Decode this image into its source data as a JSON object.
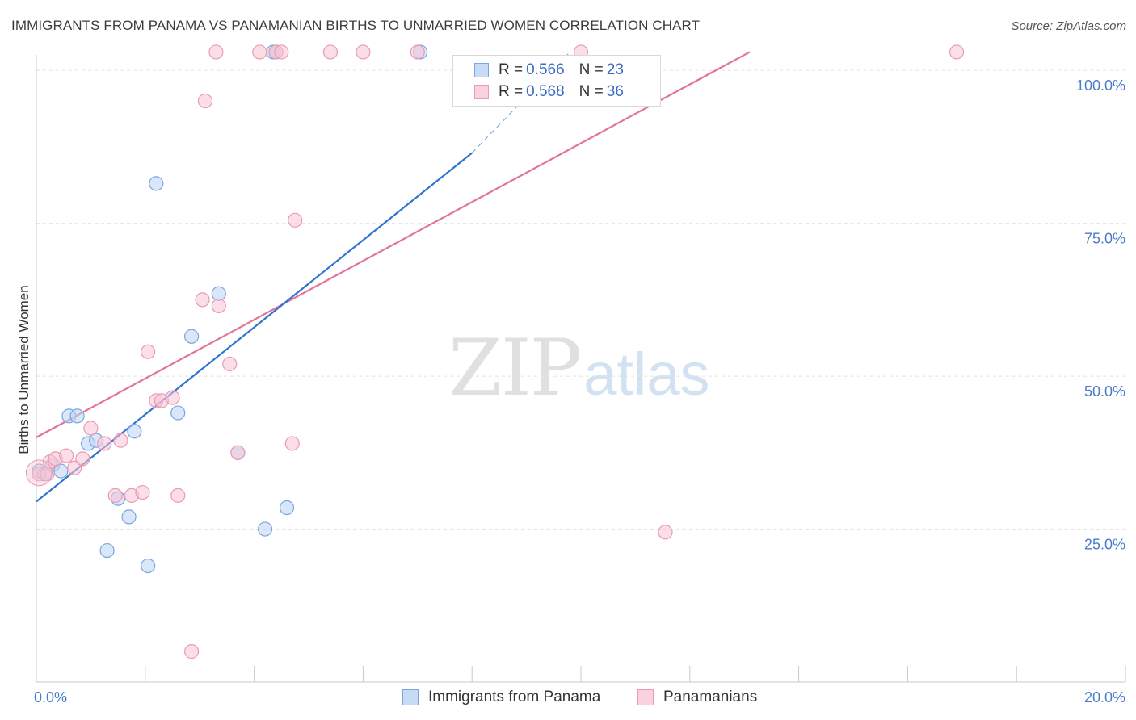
{
  "title": "IMMIGRANTS FROM PANAMA VS PANAMANIAN BIRTHS TO UNMARRIED WOMEN CORRELATION CHART",
  "source": "Source: ZipAtlas.com",
  "watermark": {
    "zip": "ZIP",
    "atlas": "atlas"
  },
  "legend": {
    "r_label": "R =",
    "n_label": "N =",
    "series": [
      {
        "r": "0.566",
        "n": "23"
      },
      {
        "r": "0.568",
        "n": "36"
      }
    ]
  },
  "colors": {
    "blue_fill": "#b9d3f3",
    "blue_stroke": "#7aa6e0",
    "blue_line": "#2f73d0",
    "pink_fill": "#f7c3d3",
    "pink_stroke": "#ec9ab4",
    "pink_line": "#e3739b",
    "grid": "#e2e2e2",
    "tick_text": "#4a7cc9"
  },
  "chart_data": {
    "type": "scatter",
    "title": "IMMIGRANTS FROM PANAMA VS PANAMANIAN BIRTHS TO UNMARRIED WOMEN CORRELATION CHART",
    "xlabel": "",
    "ylabel": "Births to Unmarried Women",
    "xlim": [
      0,
      20
    ],
    "ylim": [
      0,
      102
    ],
    "x_tick_labels": [
      {
        "value": 0,
        "label": "0.0%"
      },
      {
        "value": 20,
        "label": "20.0%"
      }
    ],
    "y_ticks": [
      {
        "value": 25,
        "label": "25.0%"
      },
      {
        "value": 50,
        "label": "50.0%"
      },
      {
        "value": 75,
        "label": "75.0%"
      },
      {
        "value": 100,
        "label": "100.0%"
      }
    ],
    "grid": true,
    "series": [
      {
        "name": "Immigrants from Panama",
        "color": "blue",
        "points": [
          [
            0.05,
            34.5
          ],
          [
            0.15,
            34.0
          ],
          [
            0.3,
            35.5
          ],
          [
            0.45,
            34.5
          ],
          [
            0.6,
            43.5
          ],
          [
            0.75,
            43.5
          ],
          [
            0.95,
            39.0
          ],
          [
            1.1,
            39.5
          ],
          [
            1.3,
            21.5
          ],
          [
            1.5,
            30.0
          ],
          [
            1.7,
            27.0
          ],
          [
            1.8,
            41.0
          ],
          [
            2.05,
            19.0
          ],
          [
            2.2,
            81.5
          ],
          [
            2.6,
            44.0
          ],
          [
            2.85,
            56.5
          ],
          [
            3.35,
            63.5
          ],
          [
            3.7,
            37.5
          ],
          [
            4.2,
            25.0
          ],
          [
            4.35,
            103.0
          ],
          [
            4.4,
            103.0
          ],
          [
            4.6,
            28.5
          ],
          [
            7.05,
            103.0
          ]
        ],
        "trend": {
          "x0": 0,
          "y0": 29.5,
          "x1": 8.0,
          "y1": 86.5
        },
        "trend_dashed": {
          "x0": 8.0,
          "y0": 86.5,
          "x1": 9.8,
          "y1": 103.0
        }
      },
      {
        "name": "Panamanians",
        "color": "pink",
        "points": [
          [
            0.05,
            34.0
          ],
          [
            0.2,
            34.0
          ],
          [
            0.25,
            36.0
          ],
          [
            0.35,
            36.5
          ],
          [
            0.55,
            37.0
          ],
          [
            0.7,
            35.0
          ],
          [
            0.85,
            36.5
          ],
          [
            1.0,
            41.5
          ],
          [
            1.25,
            39.0
          ],
          [
            1.45,
            30.5
          ],
          [
            1.55,
            39.5
          ],
          [
            1.75,
            30.5
          ],
          [
            1.95,
            31.0
          ],
          [
            2.05,
            54.0
          ],
          [
            2.2,
            46.0
          ],
          [
            2.3,
            46.0
          ],
          [
            2.5,
            46.5
          ],
          [
            2.6,
            30.5
          ],
          [
            2.85,
            5.0
          ],
          [
            3.05,
            62.5
          ],
          [
            3.1,
            95.0
          ],
          [
            3.3,
            103.0
          ],
          [
            3.35,
            61.5
          ],
          [
            3.55,
            52.0
          ],
          [
            3.7,
            37.5
          ],
          [
            4.1,
            103.0
          ],
          [
            4.4,
            103.0
          ],
          [
            4.5,
            103.0
          ],
          [
            4.7,
            39.0
          ],
          [
            4.75,
            75.5
          ],
          [
            5.4,
            103.0
          ],
          [
            6.0,
            103.0
          ],
          [
            7.0,
            103.0
          ],
          [
            10.0,
            103.0
          ],
          [
            11.55,
            24.5
          ],
          [
            16.9,
            103.0
          ]
        ],
        "trend": {
          "x0": 0,
          "y0": 40.0,
          "x1": 13.1,
          "y1": 103.0
        }
      }
    ]
  },
  "bottom_legend": {
    "items": [
      {
        "label": "Immigrants from Panama"
      },
      {
        "label": "Panamanians"
      }
    ]
  }
}
